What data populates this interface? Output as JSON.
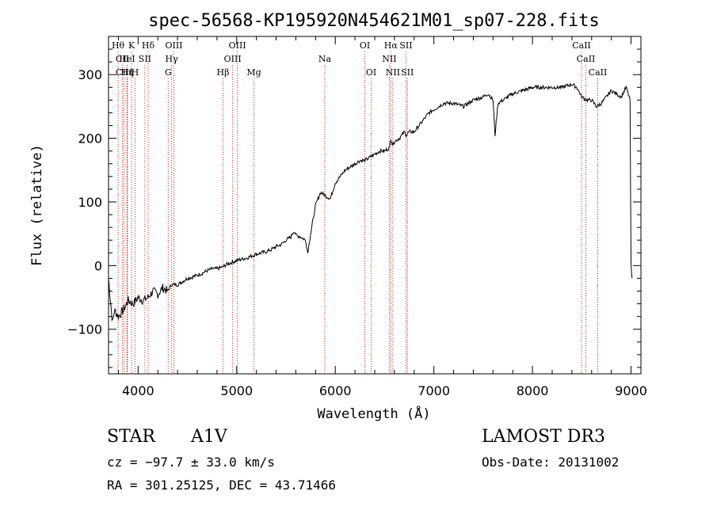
{
  "chart_data": {
    "type": "line",
    "title": "spec-56568-KP195920N454621M01_sp07-228.fits",
    "xlabel": "Wavelength (Å)",
    "ylabel": "Flux (relative)",
    "xlim": [
      3700,
      9100
    ],
    "ylim": [
      -170,
      360
    ],
    "xticks": [
      4000,
      5000,
      6000,
      7000,
      8000,
      9000
    ],
    "yticks": [
      -100,
      0,
      100,
      200,
      300
    ],
    "grid": false,
    "series": [
      {
        "name": "flux",
        "x": [
          3700,
          3740,
          3760,
          3800,
          3850,
          3900,
          3950,
          4000,
          4050,
          4100,
          4150,
          4200,
          4250,
          4300,
          4340,
          4400,
          4450,
          4500,
          4550,
          4600,
          4650,
          4700,
          4750,
          4800,
          4861,
          4900,
          4950,
          5000,
          5050,
          5100,
          5150,
          5200,
          5250,
          5300,
          5350,
          5400,
          5450,
          5500,
          5550,
          5580,
          5600,
          5650,
          5700,
          5720,
          5750,
          5800,
          5850,
          5900,
          5950,
          6000,
          6050,
          6100,
          6150,
          6200,
          6250,
          6300,
          6350,
          6400,
          6450,
          6500,
          6550,
          6563,
          6580,
          6600,
          6650,
          6700,
          6720,
          6750,
          6800,
          6850,
          6900,
          6950,
          7000,
          7050,
          7100,
          7200,
          7300,
          7400,
          7500,
          7550,
          7600,
          7620,
          7650,
          7700,
          7800,
          7900,
          8000,
          8100,
          8200,
          8300,
          8400,
          8450,
          8500,
          8550,
          8600,
          8650,
          8700,
          8750,
          8800,
          8850,
          8900,
          8950,
          8990,
          9000,
          9010
        ],
        "y": [
          -20,
          -90,
          -70,
          -80,
          -70,
          -55,
          -60,
          -50,
          -55,
          -50,
          -40,
          -45,
          -35,
          -40,
          -30,
          -30,
          -25,
          -20,
          -18,
          -15,
          -12,
          -8,
          -5,
          -5,
          -2,
          2,
          5,
          8,
          10,
          12,
          15,
          18,
          20,
          22,
          25,
          30,
          33,
          40,
          45,
          55,
          48,
          45,
          40,
          20,
          50,
          95,
          115,
          110,
          105,
          130,
          140,
          150,
          155,
          160,
          165,
          165,
          170,
          175,
          180,
          180,
          185,
          200,
          190,
          195,
          200,
          210,
          205,
          210,
          210,
          220,
          230,
          240,
          245,
          250,
          255,
          255,
          250,
          260,
          265,
          270,
          260,
          205,
          255,
          260,
          270,
          275,
          280,
          280,
          280,
          280,
          285,
          280,
          265,
          260,
          260,
          250,
          255,
          265,
          275,
          270,
          265,
          280,
          260,
          0,
          -20
        ]
      }
    ],
    "lines": [
      {
        "label": "Hθ",
        "x": 3797,
        "row": 0
      },
      {
        "label": "CII",
        "x": 3840,
        "row": 1
      },
      {
        "label": "CIII",
        "x": 3858,
        "row": 2
      },
      {
        "label": "K",
        "x": 3934,
        "row": 0
      },
      {
        "label": "HeI",
        "x": 3889,
        "row": 1
      },
      {
        "label": "Hη",
        "x": 3889,
        "row": 2
      },
      {
        "label": "H",
        "x": 3969,
        "row": 2
      },
      {
        "label": "SII",
        "x": 4069,
        "row": 1
      },
      {
        "label": "Hδ",
        "x": 4102,
        "row": 0
      },
      {
        "label": "OIII",
        "x": 4363,
        "row": 0
      },
      {
        "label": "Hγ",
        "x": 4340,
        "row": 1
      },
      {
        "label": "G",
        "x": 4305,
        "row": 2
      },
      {
        "label": "Hβ",
        "x": 4861,
        "row": 2
      },
      {
        "label": "OIII",
        "x": 4959,
        "row": 1
      },
      {
        "label": "OIII",
        "x": 5007,
        "row": 0
      },
      {
        "label": "Mg",
        "x": 5175,
        "row": 2
      },
      {
        "label": "Na",
        "x": 5893,
        "row": 1
      },
      {
        "label": "OI",
        "x": 6300,
        "row": 0
      },
      {
        "label": "OI",
        "x": 6364,
        "row": 2
      },
      {
        "label": "Hα",
        "x": 6563,
        "row": 0
      },
      {
        "label": "NII",
        "x": 6548,
        "row": 1
      },
      {
        "label": "NII",
        "x": 6584,
        "row": 2
      },
      {
        "label": "SII",
        "x": 6717,
        "row": 0
      },
      {
        "label": "SII",
        "x": 6731,
        "row": 2
      },
      {
        "label": "CaII",
        "x": 8498,
        "row": 0
      },
      {
        "label": "CaII",
        "x": 8542,
        "row": 1
      },
      {
        "label": "CaII",
        "x": 8662,
        "row": 2
      }
    ]
  },
  "info": {
    "object_class": "STAR",
    "subclass": "A1V",
    "survey": "LAMOST DR3",
    "cz": "cz = −97.7 ± 33.0 km/s",
    "obs_date": "Obs-Date: 20131002",
    "coords": "RA = 301.25125, DEC =  43.71466"
  }
}
